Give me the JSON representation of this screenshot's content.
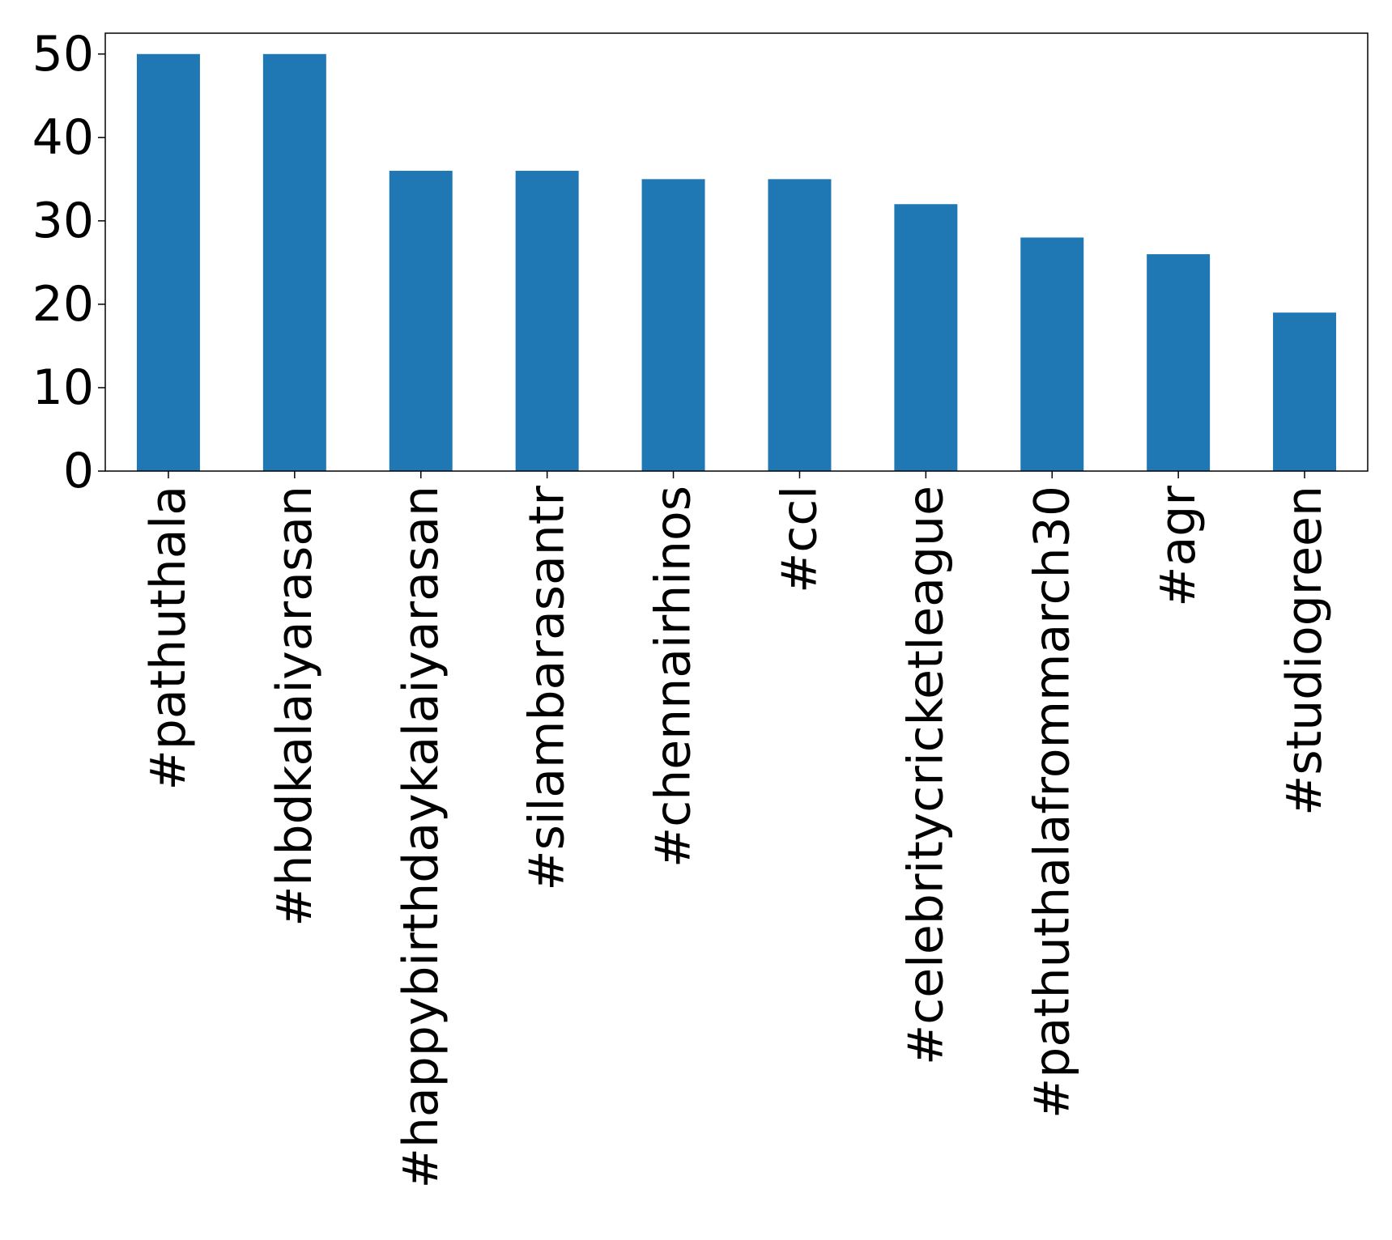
{
  "chart_data": {
    "type": "bar",
    "title": "",
    "xlabel": "",
    "ylabel": "",
    "categories": [
      "#pathuthala",
      "#hbdkalaiyarasan",
      "#happybirthdaykalaiyarasan",
      "#silambarasantr",
      "#chennairhinos",
      "#ccl",
      "#celebritycricketleague",
      "#pathuthalafrommarch30",
      "#agr",
      "#studiogreen"
    ],
    "values": [
      50,
      50,
      36,
      36,
      35,
      35,
      32,
      28,
      26,
      19
    ],
    "ylim": [
      0,
      52.5
    ],
    "yticks": [
      0,
      10,
      20,
      30,
      40,
      50
    ],
    "grid": false,
    "legend": "none",
    "bar_color": "#1f77b4"
  }
}
